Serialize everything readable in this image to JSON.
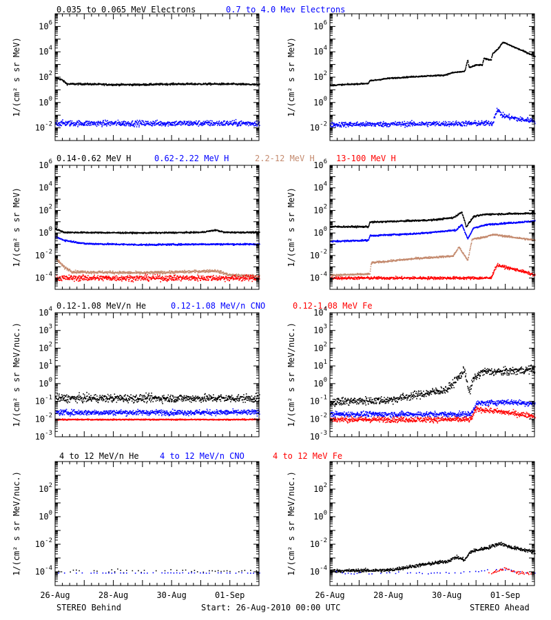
{
  "figure": {
    "footer_left": "STEREO Behind",
    "footer_center": "Start: 26-Aug-2010 00:00 UTC",
    "footer_right": "STEREO Ahead",
    "x_ticks": [
      "26-Aug",
      "28-Aug",
      "30-Aug",
      "01-Sep"
    ],
    "colors": {
      "black": "#000000",
      "blue": "#0000ff",
      "tan": "#c48a6e",
      "red": "#ff0000"
    }
  },
  "chart_data": [
    {
      "id": "electrons",
      "type": "scatter",
      "ylabel": "1/(cm² s sr MeV)",
      "y_log": true,
      "ylim_exp": [
        -3,
        7
      ],
      "y_tick_exps": [
        -2,
        0,
        2,
        4,
        6
      ],
      "x": {
        "start": "2010-08-26",
        "days": 7
      },
      "legend": [
        {
          "label": "0.035 to 0.065 MeV Electrons",
          "color": "#000000"
        },
        {
          "label": "0.7 to 4.0 Mev Electrons",
          "color": "#0000ff"
        }
      ],
      "series": [
        {
          "spacecraft": "behind",
          "color": "#000000",
          "points": [
            [
              0,
              2
            ],
            [
              0.2,
              1.85
            ],
            [
              0.4,
              1.5
            ],
            [
              1,
              1.5
            ],
            [
              2,
              1.45
            ],
            [
              3,
              1.45
            ],
            [
              4,
              1.5
            ],
            [
              5,
              1.5
            ],
            [
              6,
              1.5
            ],
            [
              7,
              1.45
            ]
          ],
          "jitter": 0.07
        },
        {
          "spacecraft": "behind",
          "color": "#0000ff",
          "points": [
            [
              0,
              -1.6
            ],
            [
              7,
              -1.6
            ]
          ],
          "jitter": 0.22
        },
        {
          "spacecraft": "ahead",
          "color": "#000000",
          "points": [
            [
              0,
              1.4
            ],
            [
              1.3,
              1.55
            ],
            [
              1.35,
              1.75
            ],
            [
              2,
              1.95
            ],
            [
              3,
              2.1
            ],
            [
              3.9,
              2.2
            ],
            [
              4.2,
              2.4
            ],
            [
              4.6,
              2.5
            ],
            [
              4.7,
              3.4
            ],
            [
              4.75,
              2.8
            ],
            [
              5,
              3
            ],
            [
              5.2,
              3
            ],
            [
              5.25,
              3.5
            ],
            [
              5.5,
              3.4
            ],
            [
              5.55,
              3.9
            ],
            [
              5.75,
              4.3
            ],
            [
              5.9,
              4.8
            ],
            [
              6.3,
              4.4
            ],
            [
              7,
              3.7
            ]
          ],
          "jitter": 0.05
        },
        {
          "spacecraft": "ahead",
          "color": "#0000ff",
          "points": [
            [
              0,
              -1.7
            ],
            [
              5.55,
              -1.6
            ],
            [
              5.7,
              -0.5
            ],
            [
              5.9,
              -1
            ],
            [
              6.5,
              -1.3
            ],
            [
              7,
              -1.4
            ]
          ],
          "jitter": 0.2
        }
      ]
    },
    {
      "id": "hydrogen",
      "type": "scatter",
      "ylabel": "1/(cm² s sr MeV)",
      "y_log": true,
      "ylim_exp": [
        -5,
        6
      ],
      "y_tick_exps": [
        -4,
        -2,
        0,
        2,
        4,
        6
      ],
      "x": {
        "start": "2010-08-26",
        "days": 7
      },
      "legend": [
        {
          "label": "0.14-0.62 MeV H",
          "color": "#000000"
        },
        {
          "label": "0.62-2.22 MeV H",
          "color": "#0000ff"
        },
        {
          "label": "2.2-12 MeV H",
          "color": "#c48a6e"
        },
        {
          "label": "13-100 MeV H",
          "color": "#ff0000"
        }
      ],
      "series": [
        {
          "spacecraft": "behind",
          "color": "#000000",
          "points": [
            [
              0,
              0.4
            ],
            [
              0.3,
              0.1
            ],
            [
              3,
              0.05
            ],
            [
              5,
              0.1
            ],
            [
              5.5,
              0.3
            ],
            [
              5.8,
              0.1
            ],
            [
              7,
              0.1
            ]
          ],
          "jitter": 0.06
        },
        {
          "spacecraft": "behind",
          "color": "#0000ff",
          "points": [
            [
              0,
              -0.3
            ],
            [
              0.3,
              -0.6
            ],
            [
              1,
              -0.9
            ],
            [
              3,
              -1
            ],
            [
              5,
              -0.95
            ],
            [
              7,
              -0.95
            ]
          ],
          "jitter": 0.07
        },
        {
          "spacecraft": "behind",
          "color": "#c48a6e",
          "points": [
            [
              0,
              -2.2
            ],
            [
              0.3,
              -3
            ],
            [
              0.6,
              -3.4
            ],
            [
              3,
              -3.5
            ],
            [
              4.5,
              -3.4
            ],
            [
              5.5,
              -3.3
            ],
            [
              6,
              -3.7
            ],
            [
              7,
              -3.8
            ]
          ],
          "jitter": 0.12
        },
        {
          "spacecraft": "behind",
          "color": "#ff0000",
          "points": [
            [
              0,
              -3.95
            ],
            [
              7,
              -3.95
            ]
          ],
          "jitter": 0.25
        },
        {
          "spacecraft": "ahead",
          "color": "#000000",
          "points": [
            [
              0,
              0.6
            ],
            [
              1.3,
              0.6
            ],
            [
              1.35,
              1
            ],
            [
              3.5,
              1.2
            ],
            [
              4.2,
              1.4
            ],
            [
              4.5,
              1.9
            ],
            [
              4.65,
              0.6
            ],
            [
              4.9,
              1.5
            ],
            [
              5.3,
              1.7
            ],
            [
              7,
              1.8
            ]
          ],
          "jitter": 0.07
        },
        {
          "spacecraft": "ahead",
          "color": "#0000ff",
          "points": [
            [
              0,
              -0.7
            ],
            [
              1.3,
              -0.6
            ],
            [
              1.35,
              -0.2
            ],
            [
              3,
              0
            ],
            [
              4.3,
              0.3
            ],
            [
              4.5,
              0.8
            ],
            [
              4.7,
              -0.5
            ],
            [
              4.9,
              0.5
            ],
            [
              5.4,
              0.8
            ],
            [
              7,
              1.1
            ]
          ],
          "jitter": 0.07
        },
        {
          "spacecraft": "ahead",
          "color": "#c48a6e",
          "points": [
            [
              0,
              -3.7
            ],
            [
              1.35,
              -3.6
            ],
            [
              1.4,
              -2.6
            ],
            [
              3,
              -2.2
            ],
            [
              4.2,
              -2
            ],
            [
              4.4,
              -1.2
            ],
            [
              4.7,
              -2.4
            ],
            [
              4.85,
              -0.5
            ],
            [
              5.1,
              -0.4
            ],
            [
              5.6,
              -0.1
            ],
            [
              7,
              -0.6
            ]
          ],
          "jitter": 0.08
        },
        {
          "spacecraft": "ahead",
          "color": "#ff0000",
          "points": [
            [
              0,
              -3.95
            ],
            [
              5.5,
              -3.95
            ],
            [
              5.6,
              -3.3
            ],
            [
              5.7,
              -2.8
            ],
            [
              6,
              -3.0
            ],
            [
              6.5,
              -3.3
            ],
            [
              7,
              -3.7
            ]
          ],
          "jitter": 0.12
        }
      ]
    },
    {
      "id": "ions",
      "type": "scatter",
      "ylabel": "1/(cm² s sr MeV/nuc.)",
      "y_log": true,
      "ylim_exp": [
        -3,
        4
      ],
      "y_tick_exps": [
        -3,
        -2,
        -1,
        0,
        1,
        2,
        3,
        4
      ],
      "x": {
        "start": "2010-08-26",
        "days": 7
      },
      "legend": [
        {
          "label": "0.12-1.08 MeV/n He",
          "color": "#000000"
        },
        {
          "label": "0.12-1.08 MeV/n CNO",
          "color": "#0000ff"
        },
        {
          "label": "0.12-1.08 MeV Fe",
          "color": "#ff0000"
        }
      ],
      "series": [
        {
          "spacecraft": "behind",
          "color": "#000000",
          "points": [
            [
              0,
              -0.8
            ],
            [
              7,
              -0.8
            ]
          ],
          "jitter": 0.22
        },
        {
          "spacecraft": "behind",
          "color": "#0000ff",
          "points": [
            [
              0,
              -1.6
            ],
            [
              7,
              -1.6
            ]
          ],
          "jitter": 0.15
        },
        {
          "spacecraft": "behind",
          "color": "#ff0000",
          "points": [
            [
              0,
              -2
            ],
            [
              7,
              -2
            ]
          ],
          "jitter": 0.03
        },
        {
          "spacecraft": "ahead",
          "color": "#000000",
          "points": [
            [
              0,
              -1
            ],
            [
              2,
              -0.9
            ],
            [
              3,
              -0.6
            ],
            [
              4,
              -0.3
            ],
            [
              4.4,
              0.4
            ],
            [
              4.6,
              0.8
            ],
            [
              4.75,
              -0.5
            ],
            [
              4.9,
              0.3
            ],
            [
              5.2,
              0.7
            ],
            [
              6,
              0.7
            ],
            [
              7,
              0.85
            ]
          ],
          "jitter": 0.22
        },
        {
          "spacecraft": "ahead",
          "color": "#0000ff",
          "points": [
            [
              0,
              -1.7
            ],
            [
              4.8,
              -1.7
            ],
            [
              5,
              -1.1
            ],
            [
              6,
              -1.0
            ],
            [
              7,
              -1.1
            ]
          ],
          "jitter": 0.15
        },
        {
          "spacecraft": "ahead",
          "color": "#ff0000",
          "points": [
            [
              0,
              -2
            ],
            [
              4.8,
              -2
            ],
            [
              5,
              -1.4
            ],
            [
              6,
              -1.6
            ],
            [
              7,
              -1.8
            ]
          ],
          "jitter": 0.15
        }
      ]
    },
    {
      "id": "heavy",
      "type": "scatter",
      "ylabel": "1/(cm² s sr MeV/nuc.)",
      "y_log": true,
      "ylim_exp": [
        -5,
        4
      ],
      "y_tick_exps": [
        -4,
        -2,
        0,
        2
      ],
      "x": {
        "start": "2010-08-26",
        "days": 7
      },
      "legend": [
        {
          "label": "4 to 12 MeV/n He",
          "color": "#000000"
        },
        {
          "label": "4 to 12 MeV/n CNO",
          "color": "#0000ff"
        },
        {
          "label": "4 to 12 MeV Fe",
          "color": "#ff0000"
        }
      ],
      "series": [
        {
          "spacecraft": "behind",
          "color": "#000000",
          "points": [
            [
              0,
              -3.9
            ],
            [
              7,
              -3.9
            ]
          ],
          "jitter": 0.12,
          "sparse": true
        },
        {
          "spacecraft": "behind",
          "color": "#0000ff",
          "points": [
            [
              0,
              -4.05
            ],
            [
              7,
              -4.05
            ]
          ],
          "jitter": 0.02,
          "sparse": true
        },
        {
          "spacecraft": "ahead",
          "color": "#000000",
          "points": [
            [
              0,
              -3.9
            ],
            [
              2,
              -3.85
            ],
            [
              3,
              -3.5
            ],
            [
              4,
              -3.2
            ],
            [
              4.3,
              -2.9
            ],
            [
              4.6,
              -3.1
            ],
            [
              4.8,
              -2.5
            ],
            [
              5.4,
              -2.2
            ],
            [
              5.8,
              -1.9
            ],
            [
              6.2,
              -2.2
            ],
            [
              6.7,
              -2.4
            ],
            [
              7,
              -2.55
            ]
          ],
          "jitter": 0.12
        },
        {
          "spacecraft": "ahead",
          "color": "#0000ff",
          "points": [
            [
              0,
              -4.05
            ],
            [
              4.7,
              -4.05
            ],
            [
              4.8,
              -4.0
            ],
            [
              5.6,
              -3.8
            ],
            [
              6,
              -3.8
            ],
            [
              6.5,
              -4.0
            ],
            [
              7,
              -4.05
            ]
          ],
          "jitter": 0.1,
          "sparse": true
        },
        {
          "spacecraft": "ahead",
          "color": "#ff0000",
          "points": [
            [
              5.4,
              -4.1
            ],
            [
              6,
              -3.7
            ],
            [
              6.3,
              -4.0
            ],
            [
              7,
              -4.1
            ]
          ],
          "jitter": 0.08,
          "sparse": true
        }
      ]
    }
  ]
}
